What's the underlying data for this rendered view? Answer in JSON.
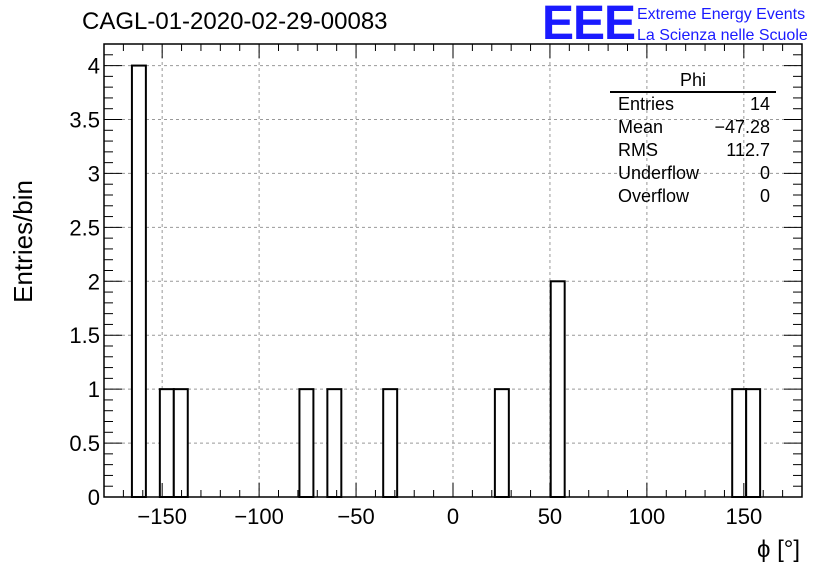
{
  "title": "CAGL-01-2020-02-29-00083",
  "logo": {
    "mark": "EEE",
    "line1": "Extreme Energy Events",
    "line2": "La Scienza nelle Scuole"
  },
  "stats": {
    "name": "Phi",
    "rows": [
      {
        "label": "Entries",
        "value": "14"
      },
      {
        "label": "Mean",
        "value": "−47.28"
      },
      {
        "label": "RMS",
        "value": "112.7"
      },
      {
        "label": "Underflow",
        "value": "0"
      },
      {
        "label": "Overflow",
        "value": "0"
      }
    ]
  },
  "chart_data": {
    "type": "bar",
    "title": "CAGL-01-2020-02-29-00083",
    "xlabel": "ϕ [°]",
    "ylabel": "Entries/bin",
    "xlim": [
      -180,
      180
    ],
    "ylim": [
      0,
      4.2
    ],
    "bin_width": 7.2,
    "grid": true,
    "x_ticks": [
      -150,
      -100,
      -50,
      0,
      50,
      100,
      150
    ],
    "x_tick_labels": [
      "−150",
      "−100",
      "−50",
      "0",
      "50",
      "100",
      "150"
    ],
    "y_ticks": [
      0,
      0.5,
      1,
      1.5,
      2,
      2.5,
      3,
      3.5,
      4
    ],
    "y_tick_labels": [
      "0",
      "0.5",
      "1",
      "1.5",
      "2",
      "2.5",
      "3",
      "3.5",
      "4"
    ],
    "bins": [
      {
        "x0": -165.6,
        "value": 4
      },
      {
        "x0": -151.2,
        "value": 1
      },
      {
        "x0": -144.0,
        "value": 1
      },
      {
        "x0": -79.2,
        "value": 1
      },
      {
        "x0": -64.8,
        "value": 1
      },
      {
        "x0": -36.0,
        "value": 1
      },
      {
        "x0": 21.6,
        "value": 1
      },
      {
        "x0": 50.4,
        "value": 2
      },
      {
        "x0": 144.0,
        "value": 1
      },
      {
        "x0": 151.2,
        "value": 1
      }
    ]
  }
}
